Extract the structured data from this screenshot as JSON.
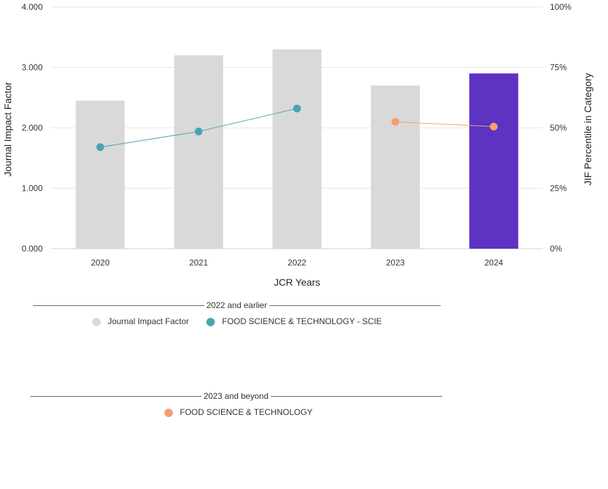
{
  "chart_data": {
    "type": "bar",
    "title": "",
    "xlabel": "JCR Years",
    "ylabel": "Journal Impact Factor",
    "y2label": "JIF Percentile in Category",
    "categories": [
      "2020",
      "2021",
      "2022",
      "2023",
      "2024"
    ],
    "ylim": [
      0,
      4
    ],
    "y2lim": [
      0,
      100
    ],
    "yticks": [
      "0.000",
      "1.000",
      "2.000",
      "3.000",
      "4.000"
    ],
    "y2ticks": [
      "0%",
      "25%",
      "50%",
      "75%",
      "100%"
    ],
    "bars": [
      {
        "year": "2020",
        "value": 2.45,
        "color": "#d9d9d9"
      },
      {
        "year": "2021",
        "value": 3.2,
        "color": "#d9d9d9"
      },
      {
        "year": "2022",
        "value": 3.3,
        "color": "#d9d9d9"
      },
      {
        "year": "2023",
        "value": 2.7,
        "color": "#d9d9d9"
      },
      {
        "year": "2024",
        "value": 2.9,
        "color": "#5c33c2"
      }
    ],
    "series": [
      {
        "name": "FOOD SCIENCE & TECHNOLOGY - SCIE",
        "color": "#4aa3b4",
        "points": [
          {
            "x": "2020",
            "y": 42
          },
          {
            "x": "2021",
            "y": 48.5
          },
          {
            "x": "2022",
            "y": 58
          }
        ]
      },
      {
        "name": "FOOD SCIENCE & TECHNOLOGY",
        "color": "#f4a06c",
        "points": [
          {
            "x": "2023",
            "y": 52.5
          },
          {
            "x": "2024",
            "y": 50.5
          }
        ]
      }
    ]
  },
  "legend": {
    "group1_title": "2022 and earlier",
    "group1_items": [
      {
        "label": "Journal Impact Factor",
        "color": "#d9d9d9"
      },
      {
        "label": "FOOD SCIENCE & TECHNOLOGY - SCIE",
        "color": "#4aa3b4"
      }
    ],
    "group2_title": "2023 and beyond",
    "group2_items": [
      {
        "label": "FOOD SCIENCE & TECHNOLOGY",
        "color": "#f4a06c"
      }
    ]
  }
}
